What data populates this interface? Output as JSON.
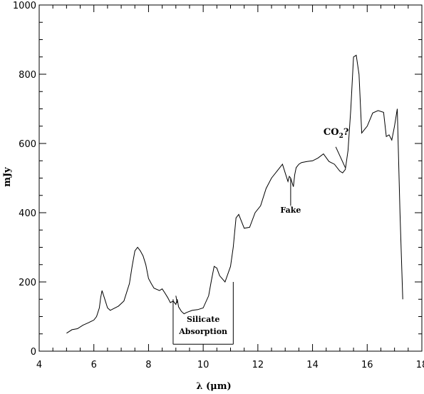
{
  "chart_data": {
    "type": "line",
    "title": "",
    "xlabel": "λ (μm)",
    "ylabel": "mJy",
    "xlim": [
      4,
      18
    ],
    "ylim": [
      0,
      1000
    ],
    "grid": false,
    "x_ticks": [
      4,
      6,
      8,
      10,
      12,
      14,
      16,
      18
    ],
    "y_ticks": [
      0,
      200,
      400,
      600,
      800,
      1000
    ],
    "series": [
      {
        "x": [
          5.0,
          5.2,
          5.4,
          5.6,
          5.8,
          6.0,
          6.1,
          6.2,
          6.25,
          6.3,
          6.4,
          6.5,
          6.6,
          6.7,
          6.9,
          7.1,
          7.3,
          7.4,
          7.5,
          7.6,
          7.7,
          7.8,
          7.9,
          8.0,
          8.1,
          8.2,
          8.4,
          8.5,
          8.6,
          8.7,
          8.8,
          8.9,
          9.0,
          9.05,
          9.1,
          9.2,
          9.3,
          9.4,
          9.6,
          9.8,
          10.0,
          10.2,
          10.3,
          10.4,
          10.5,
          10.6,
          10.8,
          11.0,
          11.1,
          11.2,
          11.3,
          11.5,
          11.7,
          11.9,
          12.1,
          12.3,
          12.5,
          12.7,
          12.9,
          13.0,
          13.1,
          13.15,
          13.2,
          13.3,
          13.35,
          13.4,
          13.5,
          13.6,
          13.8,
          14.0,
          14.2,
          14.4,
          14.6,
          14.8,
          15.0,
          15.1,
          15.2,
          15.3,
          15.4,
          15.5,
          15.6,
          15.7,
          15.8,
          15.9,
          16.0,
          16.2,
          16.4,
          16.6,
          16.7,
          16.8,
          16.9,
          17.0,
          17.1,
          17.2,
          17.3
        ],
        "y": [
          52,
          62,
          65,
          75,
          82,
          90,
          100,
          125,
          155,
          175,
          150,
          125,
          118,
          122,
          130,
          145,
          195,
          245,
          290,
          300,
          290,
          275,
          250,
          210,
          195,
          182,
          175,
          180,
          168,
          155,
          140,
          145,
          135,
          150,
          128,
          115,
          108,
          112,
          118,
          120,
          125,
          160,
          205,
          245,
          240,
          218,
          200,
          245,
          300,
          385,
          395,
          355,
          358,
          400,
          420,
          470,
          500,
          520,
          540,
          515,
          490,
          505,
          500,
          475,
          510,
          530,
          540,
          545,
          548,
          550,
          558,
          570,
          548,
          540,
          520,
          515,
          525,
          580,
          700,
          850,
          855,
          800,
          630,
          640,
          650,
          688,
          695,
          690,
          620,
          625,
          610,
          650,
          700,
          400,
          150
        ]
      }
    ],
    "annotations": [
      {
        "text": "Silicate",
        "x": 10.0,
        "y": 85
      },
      {
        "text": "Absorption",
        "x": 10.0,
        "y": 50
      },
      {
        "text": "Fake",
        "x": 13.2,
        "y": 400
      },
      {
        "text": "CO",
        "x": 15.15,
        "y": 630
      }
    ]
  }
}
